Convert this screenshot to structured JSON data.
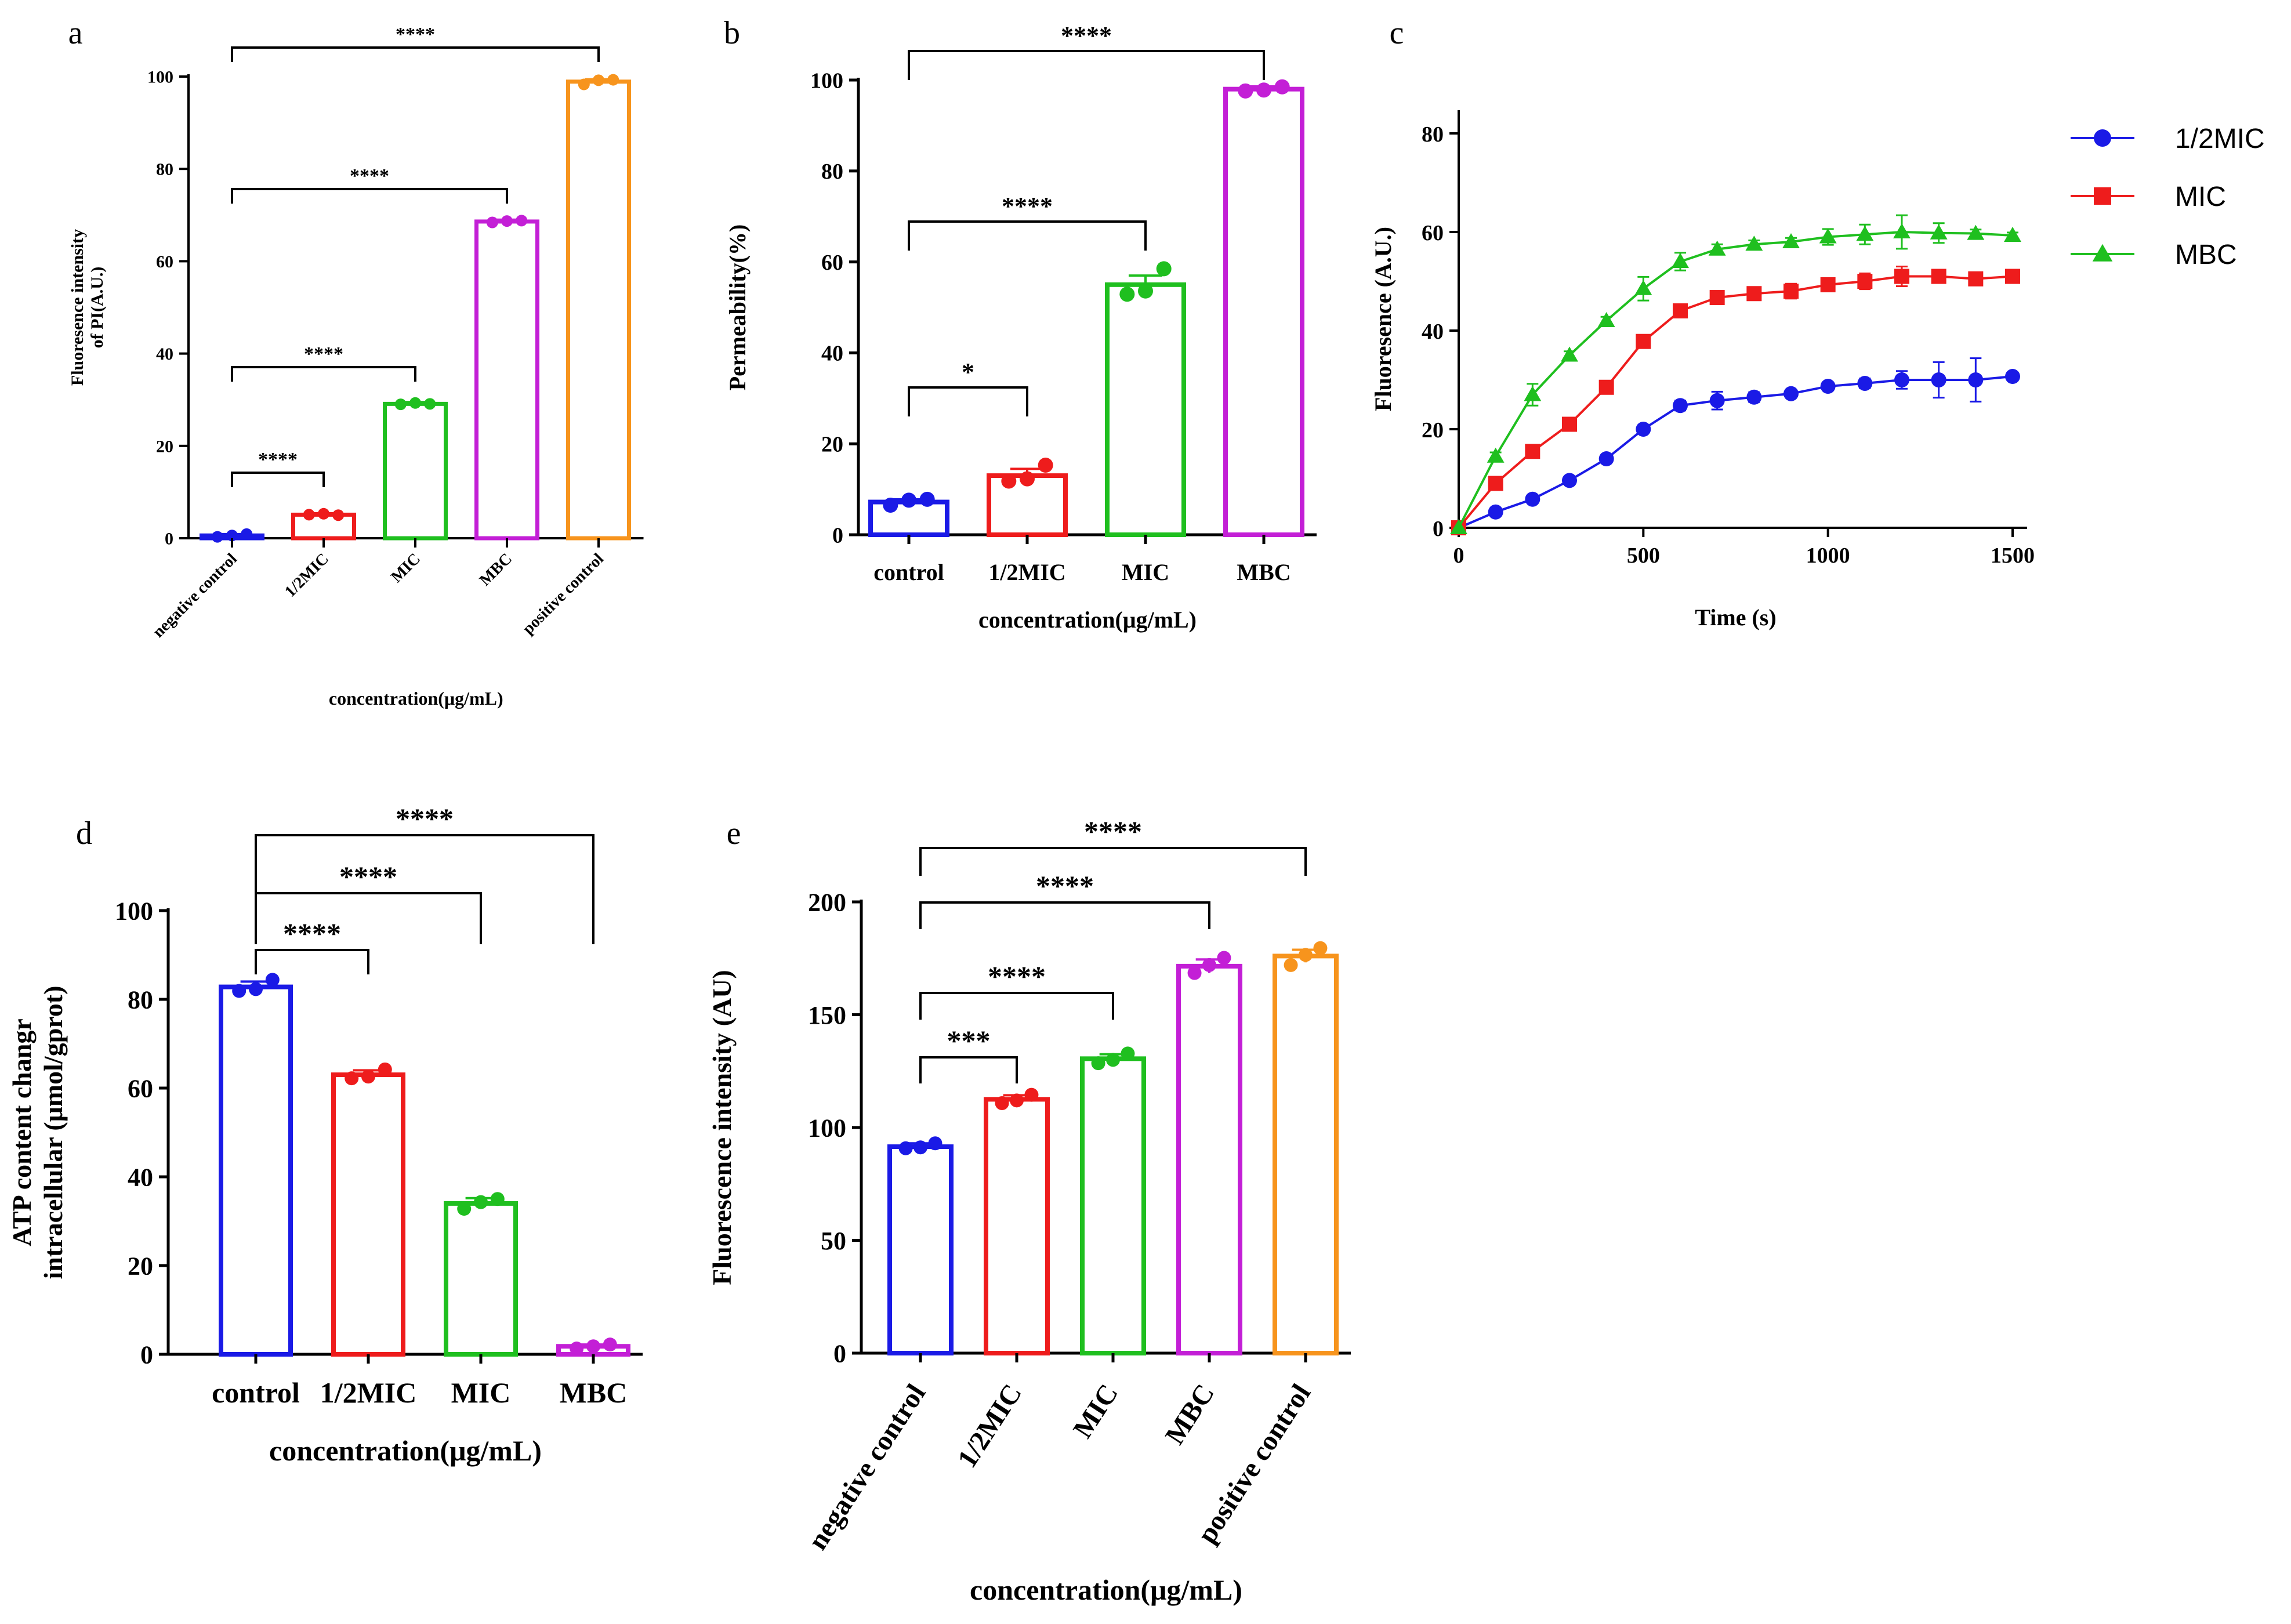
{
  "figure": {
    "panels": [
      "a",
      "b",
      "c",
      "d",
      "e"
    ]
  },
  "chart_data": [
    {
      "id": "a",
      "panel_label": "a",
      "type": "bar",
      "title": "",
      "xlabel": "concentration(μg/mL)",
      "ylabel_lines": [
        "Fluoresence intensity",
        "of PI(A.U.)"
      ],
      "ylim": [
        0,
        100
      ],
      "yticks": [
        0,
        20,
        40,
        60,
        80,
        100
      ],
      "tick_labels": [
        "0",
        "20",
        "40",
        "60",
        "80",
        "100"
      ],
      "categories": [
        "negative control",
        "1/2MIC",
        "MIC",
        "MBC",
        "positive control"
      ],
      "values": [
        0.6,
        5.1,
        29.1,
        68.6,
        98.9
      ],
      "errors": [
        0.3,
        0.3,
        0.4,
        0.4,
        0.5
      ],
      "points": [
        [
          0.3,
          0.6,
          0.9
        ],
        [
          5.1,
          5.3,
          5.0
        ],
        [
          29.0,
          29.3,
          29.1
        ],
        [
          68.4,
          68.7,
          68.8
        ],
        [
          98.3,
          99.2,
          99.3
        ]
      ],
      "colors": [
        "#1a1ae6",
        "#ee1c1c",
        "#1fbf1f",
        "#c31fd6",
        "#f7941d"
      ],
      "significance": [
        {
          "from": 0,
          "to": 1,
          "label": "****"
        },
        {
          "from": 0,
          "to": 2,
          "label": "****"
        },
        {
          "from": 0,
          "to": 3,
          "label": "****"
        },
        {
          "from": 0,
          "to": 4,
          "label": "****"
        }
      ]
    },
    {
      "id": "b",
      "panel_label": "b",
      "type": "bar",
      "title": "",
      "xlabel": "concentration(μg/mL)",
      "ylabel_lines": [
        "Permeability(%)"
      ],
      "ylim": [
        0,
        100
      ],
      "yticks": [
        0,
        20,
        40,
        60,
        80,
        100
      ],
      "tick_labels": [
        "0",
        "20",
        "40",
        "60",
        "80",
        "100"
      ],
      "categories": [
        "control",
        "1/2MIC",
        "MIC",
        "MBC"
      ],
      "values": [
        7.2,
        13.0,
        55.0,
        98.0
      ],
      "errors": [
        0.6,
        1.5,
        2.0,
        0.6
      ],
      "points": [
        [
          6.5,
          7.6,
          7.8
        ],
        [
          11.8,
          12.3,
          15.3
        ],
        [
          52.9,
          53.6,
          58.5
        ],
        [
          97.6,
          97.8,
          98.5
        ]
      ],
      "colors": [
        "#1a1ae6",
        "#ee1c1c",
        "#1fbf1f",
        "#c31fd6"
      ],
      "significance": [
        {
          "from": 0,
          "to": 1,
          "label": "*"
        },
        {
          "from": 0,
          "to": 2,
          "label": "****"
        },
        {
          "from": 0,
          "to": 3,
          "label": "****"
        }
      ]
    },
    {
      "id": "c",
      "panel_label": "c",
      "type": "line",
      "title": "",
      "xlabel": "Time (s)",
      "ylabel": "Fluoresence (A.U.)",
      "xlim": [
        0,
        1500
      ],
      "ylim": [
        0,
        85
      ],
      "xticks": [
        0,
        500,
        1000,
        1500
      ],
      "xtick_labels": [
        "0",
        "500",
        "1000",
        "1500"
      ],
      "yticks": [
        0,
        20,
        40,
        60,
        80
      ],
      "ytick_labels": [
        "0",
        "20",
        "40",
        "60",
        "80"
      ],
      "x": [
        0,
        100,
        200,
        300,
        400,
        500,
        600,
        700,
        800,
        900,
        1000,
        1100,
        1200,
        1300,
        1400,
        1500
      ],
      "series": [
        {
          "name": "1/2MIC",
          "color": "#1a1ae6",
          "marker": "circle",
          "values": [
            0,
            3.2,
            5.8,
            9.6,
            14.0,
            20.0,
            24.8,
            25.8,
            26.5,
            27.2,
            28.7,
            29.3,
            30.0,
            30.0,
            30.0,
            30.7
          ],
          "errors": [
            0,
            0.3,
            0.4,
            0.5,
            0.6,
            0.6,
            1.0,
            1.8,
            1.0,
            0.8,
            0.8,
            1.0,
            1.8,
            3.6,
            4.4,
            0.8
          ]
        },
        {
          "name": "MIC",
          "color": "#ee1c1c",
          "marker": "square",
          "values": [
            0,
            9.0,
            15.5,
            21.0,
            28.5,
            37.8,
            44.0,
            46.7,
            47.5,
            48.0,
            49.3,
            50.0,
            51.0,
            51.0,
            50.5,
            51.0
          ],
          "errors": [
            0,
            0.5,
            0.6,
            0.6,
            0.8,
            1.0,
            1.0,
            1.0,
            0.8,
            1.5,
            1.2,
            1.6,
            2.0,
            1.0,
            1.2,
            0.8
          ]
        },
        {
          "name": "MBC",
          "color": "#1fbf1f",
          "marker": "triangle",
          "values": [
            0,
            14.5,
            27.0,
            35.0,
            42.0,
            48.5,
            54.0,
            56.5,
            57.5,
            58.0,
            59.0,
            59.5,
            60.0,
            59.8,
            59.7,
            59.3
          ],
          "errors": [
            0,
            0.8,
            2.2,
            0.8,
            0.8,
            2.4,
            1.8,
            1.0,
            0.8,
            0.8,
            1.6,
            2.0,
            3.4,
            2.0,
            0.8,
            0.6
          ]
        }
      ],
      "legend": "right"
    },
    {
      "id": "d",
      "panel_label": "d",
      "type": "bar",
      "title": "",
      "xlabel": "concentration(μg/mL)",
      "ylabel_lines": [
        "ATP content changr",
        "intracellular (μmol/gprot)"
      ],
      "ylim": [
        0,
        100
      ],
      "yticks": [
        0,
        20,
        40,
        60,
        80,
        100
      ],
      "tick_labels": [
        "0",
        "20",
        "40",
        "60",
        "80",
        "100"
      ],
      "categories": [
        "control",
        "1/2MIC",
        "MIC",
        "MBC"
      ],
      "values": [
        82.8,
        63.0,
        34.0,
        1.8
      ],
      "errors": [
        1.2,
        1.0,
        1.2,
        0.4
      ],
      "points": [
        [
          81.9,
          82.3,
          84.4
        ],
        [
          62.2,
          62.6,
          64.2
        ],
        [
          32.8,
          34.3,
          35.0
        ],
        [
          1.3,
          1.8,
          2.2
        ]
      ],
      "colors": [
        "#1a1ae6",
        "#ee1c1c",
        "#1fbf1f",
        "#c31fd6"
      ],
      "significance": [
        {
          "from": 0,
          "to": 1,
          "label": "****"
        },
        {
          "from": 0,
          "to": 2,
          "label": "****"
        },
        {
          "from": 0,
          "to": 3,
          "label": "****"
        }
      ]
    },
    {
      "id": "e",
      "panel_label": "e",
      "type": "bar",
      "title": "",
      "xlabel": "concentration(μg/mL)",
      "ylabel_lines": [
        "Fluorescence intensity (AU)"
      ],
      "ylim": [
        0,
        200
      ],
      "yticks": [
        0,
        50,
        100,
        150,
        200
      ],
      "tick_labels": [
        "0",
        "50",
        "100",
        "150",
        "200"
      ],
      "categories": [
        "negative control",
        "1/2MIC",
        "MIC",
        "MBC",
        "positive control"
      ],
      "values": [
        91.5,
        112.5,
        130.5,
        171.5,
        176.0
      ],
      "errors": [
        1.5,
        1.8,
        2.0,
        3.0,
        2.8
      ],
      "points": [
        [
          90.8,
          91.2,
          93.0
        ],
        [
          110.8,
          112.0,
          114.5
        ],
        [
          128.5,
          130.0,
          132.8
        ],
        [
          168.5,
          172.0,
          175.2
        ],
        [
          172.0,
          176.5,
          179.5
        ]
      ],
      "colors": [
        "#1a1ae6",
        "#ee1c1c",
        "#1fbf1f",
        "#c31fd6",
        "#f7941d"
      ],
      "significance": [
        {
          "from": 0,
          "to": 1,
          "label": "***"
        },
        {
          "from": 0,
          "to": 2,
          "label": "****"
        },
        {
          "from": 0,
          "to": 3,
          "label": "****"
        },
        {
          "from": 0,
          "to": 4,
          "label": "****"
        }
      ]
    }
  ]
}
